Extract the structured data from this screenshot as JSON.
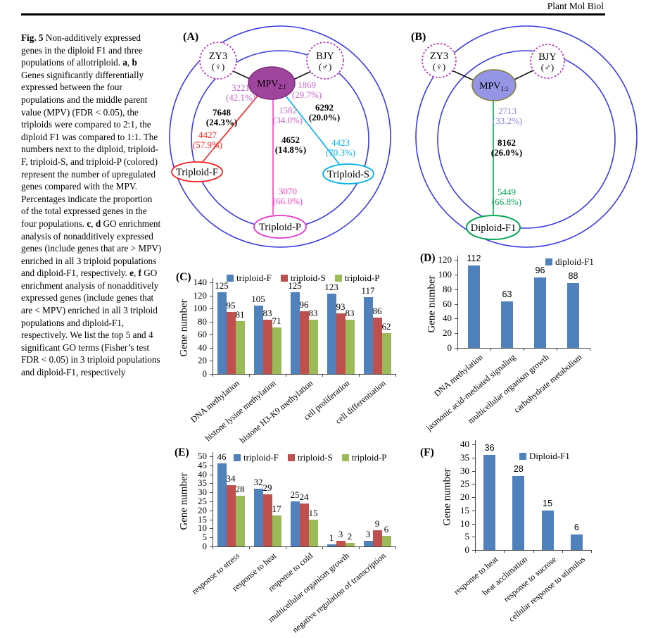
{
  "journal": "Plant Mol Biol",
  "caption": {
    "segments": [
      {
        "t": "Fig. 5",
        "b": true
      },
      {
        "t": "  Non-additively expressed genes in the diploid F1 and three populations of allotriploid. ",
        "b": false
      },
      {
        "t": "a",
        "b": true
      },
      {
        "t": ", ",
        "b": false
      },
      {
        "t": "b",
        "b": true
      },
      {
        "t": " Genes significantly differentially expressed between the four populations and the middle parent value (MPV) (FDR < 0.05), the triploids were compared to 2:1, the diploid F1 was compared to 1:1. The numbers next to the diploid, triploid-F, triploid-S, and triploid-P (colored) represent the number of upregulated genes compared with the MPV. Percentages indicate the proportion of the total expressed genes in the four populations. ",
        "b": false
      },
      {
        "t": "c",
        "b": true
      },
      {
        "t": ", ",
        "b": false
      },
      {
        "t": "d",
        "b": true
      },
      {
        "t": " GO enrichment analysis of nonadditively expressed genes (include genes that are > MPV) enriched in all 3 triploid populations and diploid-F1, respectively. ",
        "b": false
      },
      {
        "t": "e",
        "b": true
      },
      {
        "t": ", ",
        "b": false
      },
      {
        "t": "f",
        "b": true
      },
      {
        "t": " GO enrichment analysis of nonadditively expressed genes (include genes that are < MPV) enriched in all 3 triploid populations and diploid-F1, respectively. We list the top 5 and 4 significant GO terms (Fisher’s test FDR < 0.05) in 3 triploid populations and diploid-F1, respectively",
        "b": false
      }
    ]
  },
  "panelA": {
    "label": "(A)",
    "zy3": {
      "name": "ZY3",
      "symbol": "(♀)"
    },
    "bjy": {
      "name": "BJY",
      "symbol": "(♂)"
    },
    "mpv": {
      "name": "MPV",
      "sub": "2:1"
    },
    "ann": {
      "left_parent": {
        "n": "3221",
        "p": "(42.1%)"
      },
      "right_parent": {
        "n": "1869",
        "p": "(29.7%)"
      },
      "left_total": {
        "n": "7648",
        "p": "(24.3%)"
      },
      "right_total": {
        "n": "6292",
        "p": "(20.0%)"
      },
      "mid_parent": {
        "n": "1582",
        "p": "(34.0%)"
      },
      "mid_total": {
        "n": "4652",
        "p": "(14.8%)"
      },
      "f_up": {
        "n": "4427",
        "p": "(57.9%)"
      },
      "s_up": {
        "n": "4423",
        "p": "(70.3%)"
      },
      "p_up": {
        "n": "3070",
        "p": "(66.0%)"
      }
    },
    "nodes": {
      "f": "Triploid-F",
      "s": "Triploid-S",
      "p": "Triploid-P"
    }
  },
  "panelB": {
    "label": "(B)",
    "zy3": {
      "name": "ZY3",
      "symbol": "(♀)"
    },
    "bjy": {
      "name": "BJY",
      "symbol": "(♂)"
    },
    "mpv": {
      "name": "MPV",
      "sub": "1:1"
    },
    "ann": {
      "mid_parent": {
        "n": "2713",
        "p": "(33.2%)"
      },
      "mid_total": {
        "n": "8162",
        "p": "(26.0%)"
      },
      "d_up": {
        "n": "5449",
        "p": "(66.8%)"
      }
    },
    "nodes": {
      "d": "Diploid-F1"
    }
  },
  "colors": {
    "bar_blue": "#4F81BD",
    "bar_red": "#C0504D",
    "bar_green": "#9BBB59",
    "venn_circle_blue": "#3A3AE8",
    "dotted_parent_purple": "#BF30BF",
    "mpv21_fill": "#A0459E",
    "mpv21_stroke": "#7B2D7B",
    "mpv11_fill": "#9595E6",
    "mpv11_stroke": "#7F7F2D",
    "triploidF_red": "#FF1F1F",
    "triploidS_cyan": "#00B0F0",
    "triploidP_magenta": "#E633CC",
    "diploidF1_green": "#00A550",
    "ann_pink": "#C867C8",
    "ann_periwinkle": "#8585DE",
    "ann_magenta": "#F23FC0",
    "ann_green": "#00A550"
  },
  "chart_data": [
    {
      "id": "C",
      "type": "bar",
      "panel_label": "(C)",
      "ylabel": "Gene number",
      "ylim": [
        0,
        140
      ],
      "ystep": 20,
      "grid": false,
      "legend_position": "top",
      "categories": [
        "DNA methylation",
        "histone lysine methylation",
        "histone H3-K9 methylation",
        "cell proliferation",
        "cell differentiation"
      ],
      "series": [
        {
          "name": "triploid-F",
          "color": "#4F81BD",
          "values": [
            125,
            105,
            125,
            123,
            117
          ]
        },
        {
          "name": "triploid-S",
          "color": "#C0504D",
          "values": [
            95,
            83,
            96,
            93,
            86
          ]
        },
        {
          "name": "triploid-P",
          "color": "#9BBB59",
          "values": [
            81,
            71,
            83,
            83,
            62
          ]
        }
      ]
    },
    {
      "id": "D",
      "type": "bar",
      "panel_label": "(D)",
      "ylabel": "Gene number",
      "ylim": [
        0,
        120
      ],
      "ystep": 20,
      "grid": false,
      "legend_position": "top",
      "categories": [
        "DNA methylation",
        "jasmonic acid-mediated signaling",
        "multicellular organism growth",
        "carbohydrate metabolism"
      ],
      "series": [
        {
          "name": "diploid-F1",
          "color": "#4F81BD",
          "values": [
            112,
            63,
            96,
            88
          ]
        }
      ]
    },
    {
      "id": "E",
      "type": "bar",
      "panel_label": "(E)",
      "ylabel": "Gene number",
      "ylim": [
        0,
        50
      ],
      "ystep": 5,
      "grid": false,
      "legend_position": "top",
      "categories": [
        "response to stress",
        "response to heat",
        "response to cold",
        "multicellular organism growth",
        "negative regulation of transcription"
      ],
      "series": [
        {
          "name": "triploid-F",
          "color": "#4F81BD",
          "values": [
            46,
            32,
            25,
            1,
            3
          ]
        },
        {
          "name": "triploid-S",
          "color": "#C0504D",
          "values": [
            34,
            29,
            24,
            3,
            9
          ]
        },
        {
          "name": "triploid-P",
          "color": "#9BBB59",
          "values": [
            28,
            17,
            15,
            2,
            6
          ]
        }
      ]
    },
    {
      "id": "F",
      "type": "bar",
      "panel_label": "(F)",
      "ylabel": "Gene number",
      "ylim": [
        0,
        40
      ],
      "ystep": 5,
      "grid": false,
      "legend_position": "top",
      "categories": [
        "response to heat",
        "heat acclimation",
        "response to sucrose",
        "cellular response to stimulus"
      ],
      "series": [
        {
          "name": "Diploid-F1",
          "color": "#4F81BD",
          "values": [
            36,
            28,
            15,
            6
          ]
        }
      ]
    }
  ]
}
